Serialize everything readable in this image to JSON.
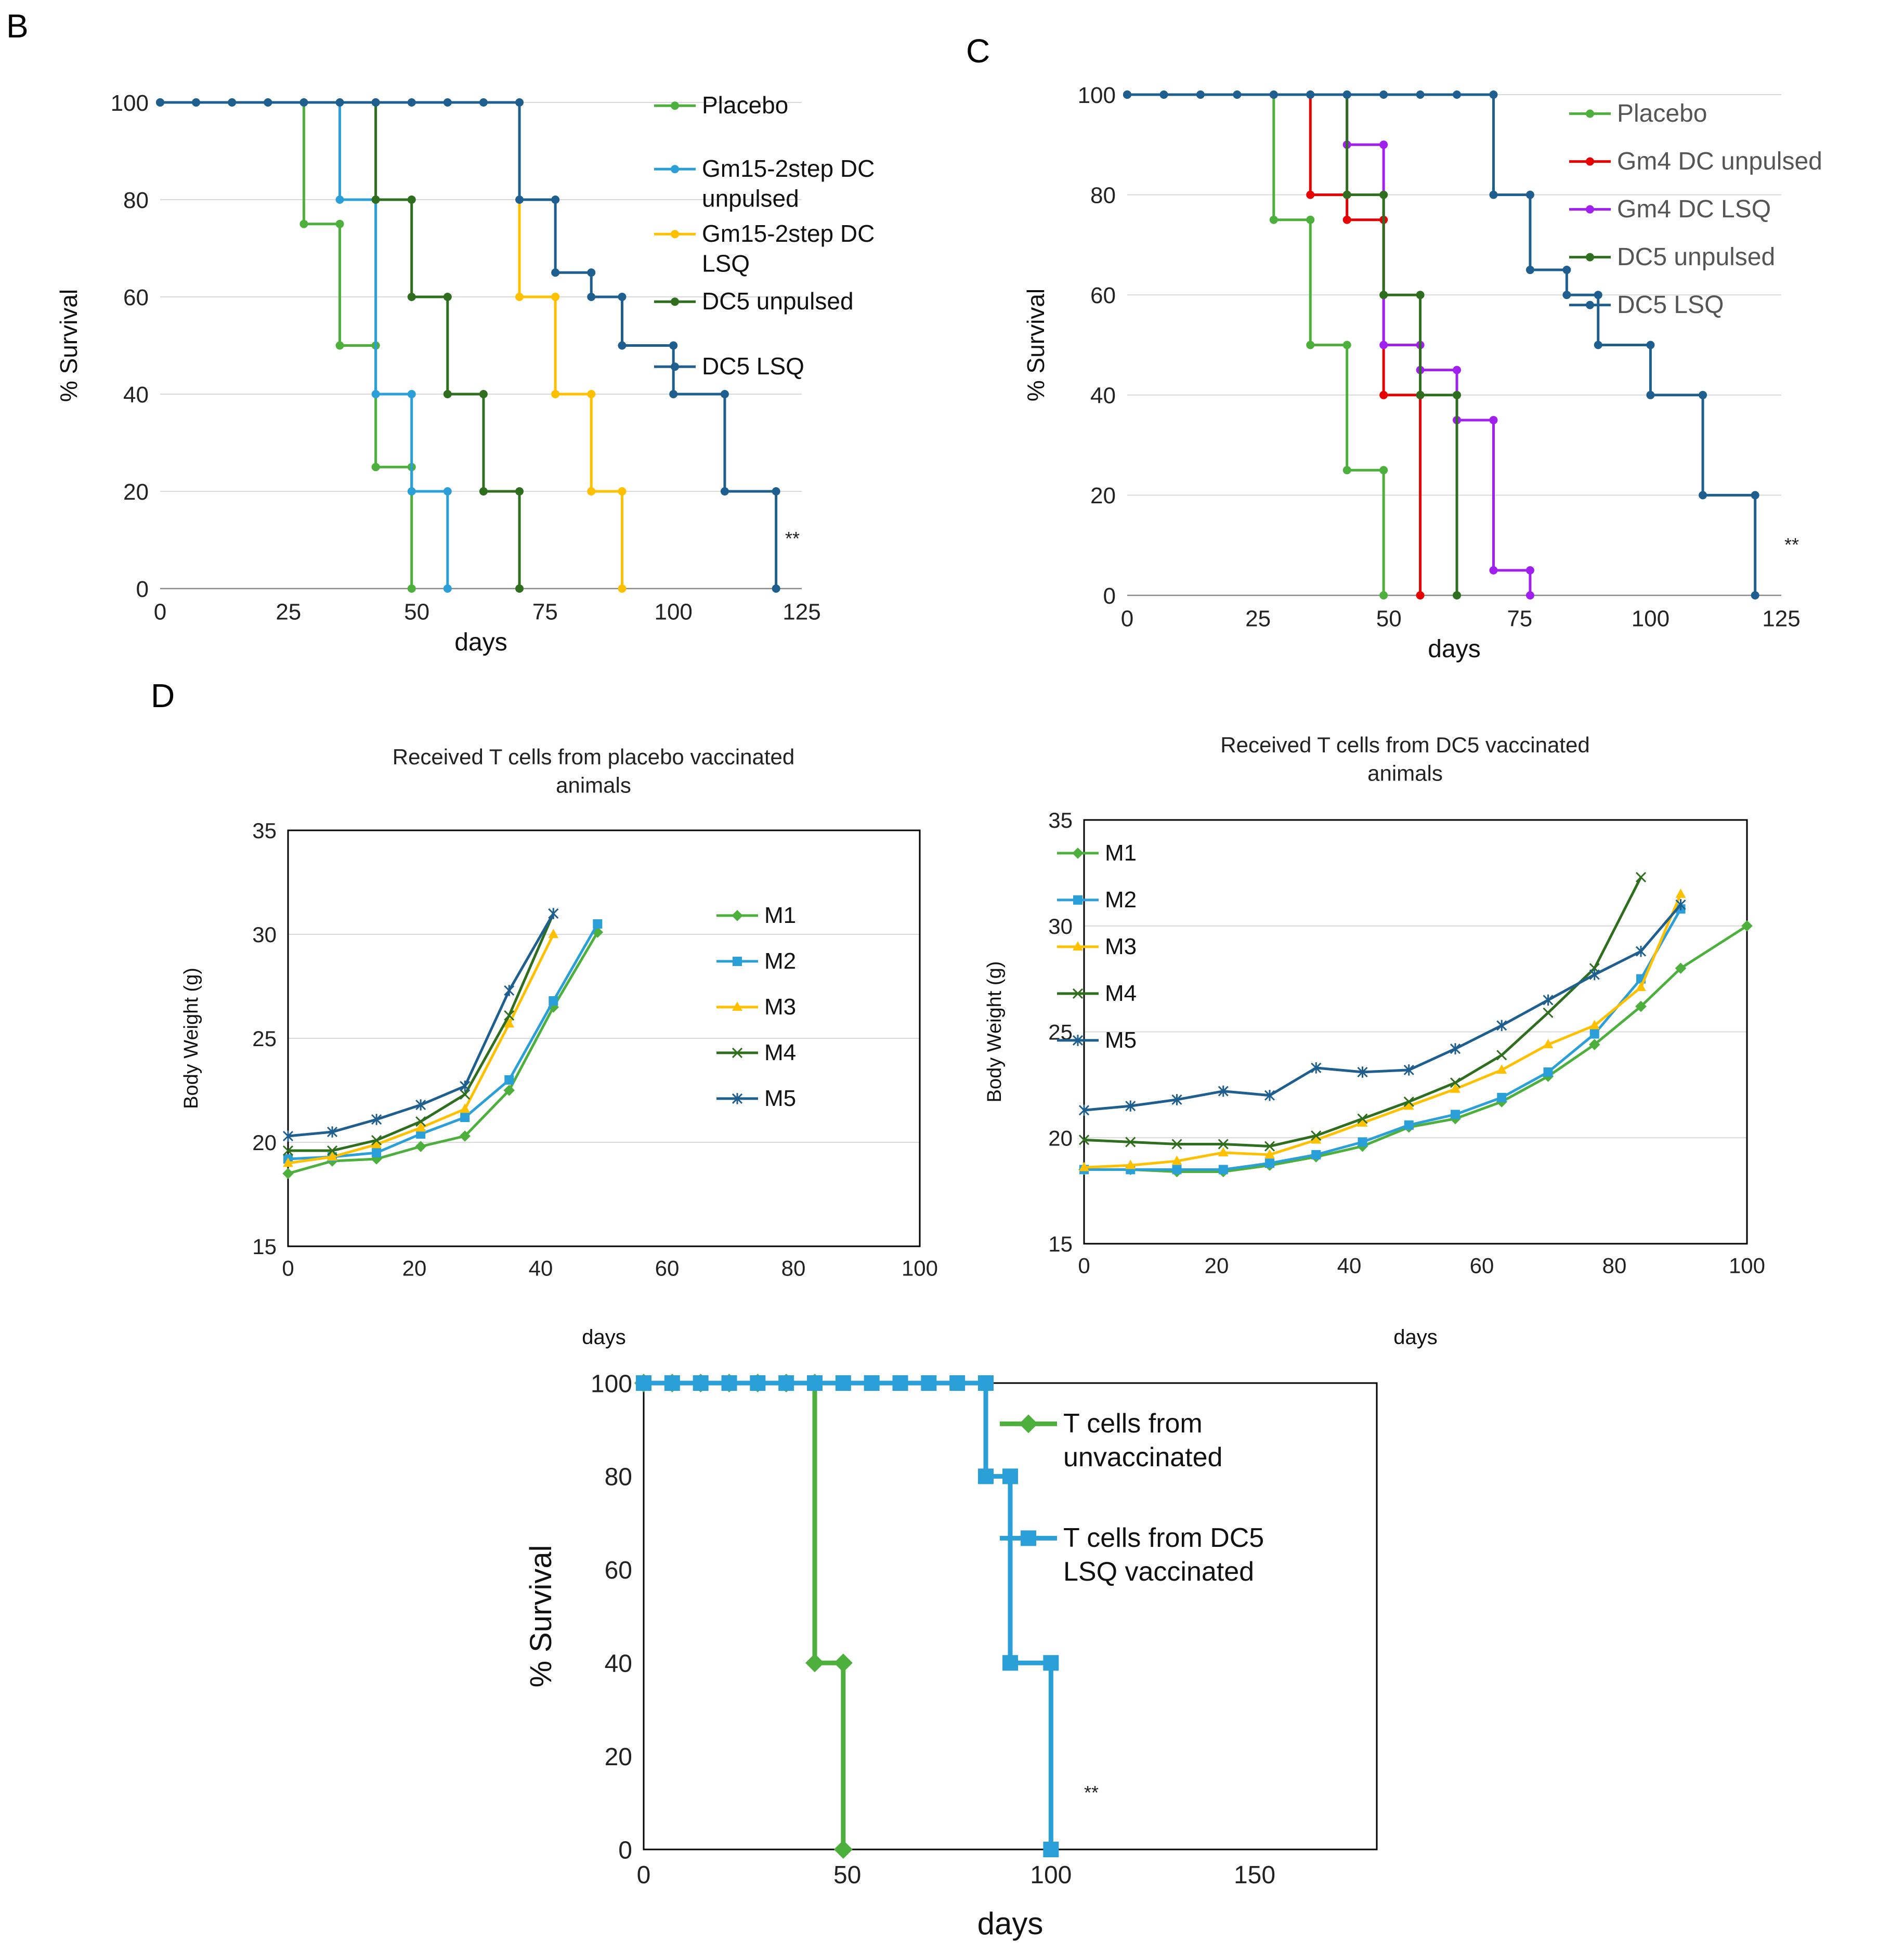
{
  "panels": {
    "B": {
      "letter": "B"
    },
    "C": {
      "letter": "C"
    },
    "D": {
      "letter": "D"
    }
  },
  "chart_data": [
    {
      "id": "chartB",
      "type": "line",
      "step": true,
      "title": "",
      "xlabel": "days",
      "ylabel": "% Survival",
      "xlim": [
        0,
        125
      ],
      "ylim": [
        0,
        100
      ],
      "xticks": [
        0,
        25,
        50,
        75,
        100,
        125
      ],
      "yticks": [
        0,
        20,
        40,
        60,
        80,
        100
      ],
      "grid": "horizontal",
      "annotation": "**",
      "series": [
        {
          "name": "Placebo",
          "color": "#4daf3c",
          "marker": "circle",
          "x": [
            0,
            7,
            14,
            21,
            28,
            28,
            35,
            35,
            42,
            42,
            49,
            49
          ],
          "y": [
            100,
            100,
            100,
            100,
            100,
            75,
            75,
            50,
            50,
            25,
            25,
            0
          ]
        },
        {
          "name": "Gm15-2step DC unpulsed",
          "color": "#2b9fd8",
          "marker": "circle",
          "x": [
            0,
            35,
            35,
            42,
            42,
            49,
            49,
            56,
            56
          ],
          "y": [
            100,
            100,
            80,
            80,
            40,
            40,
            20,
            20,
            0
          ]
        },
        {
          "name": "Gm15-2step DC LSQ",
          "color": "#ffc000",
          "marker": "circle",
          "x": [
            0,
            70,
            70,
            77,
            77,
            84,
            84,
            90,
            90
          ],
          "y": [
            100,
            100,
            60,
            60,
            40,
            40,
            20,
            20,
            0
          ]
        },
        {
          "name": "DC5 unpulsed",
          "color": "#2e6e1e",
          "marker": "circle",
          "x": [
            0,
            42,
            42,
            49,
            49,
            56,
            56,
            63,
            63,
            70,
            70
          ],
          "y": [
            100,
            100,
            80,
            80,
            60,
            60,
            40,
            40,
            20,
            20,
            0
          ]
        },
        {
          "name": "DC5 LSQ",
          "color": "#1f5f8f",
          "marker": "circle",
          "x": [
            0,
            7,
            14,
            21,
            28,
            35,
            42,
            49,
            56,
            63,
            70,
            70,
            77,
            77,
            84,
            84,
            90,
            90,
            100,
            100,
            110,
            110,
            120,
            120
          ],
          "y": [
            100,
            100,
            100,
            100,
            100,
            100,
            100,
            100,
            100,
            100,
            100,
            80,
            80,
            65,
            65,
            60,
            60,
            50,
            50,
            40,
            40,
            20,
            20,
            0
          ]
        }
      ]
    },
    {
      "id": "chartC",
      "type": "line",
      "step": true,
      "title": "",
      "xlabel": "days",
      "ylabel": "% Survival",
      "xlim": [
        0,
        125
      ],
      "ylim": [
        0,
        100
      ],
      "xticks": [
        0,
        25,
        50,
        75,
        100,
        125
      ],
      "yticks": [
        0,
        20,
        40,
        60,
        80,
        100
      ],
      "grid": "horizontal",
      "annotation": "**",
      "series": [
        {
          "name": "Placebo",
          "color": "#4daf3c",
          "marker": "circle",
          "x": [
            0,
            7,
            14,
            21,
            28,
            28,
            35,
            35,
            42,
            42,
            49,
            49
          ],
          "y": [
            100,
            100,
            100,
            100,
            100,
            75,
            75,
            50,
            50,
            25,
            25,
            0
          ]
        },
        {
          "name": "Gm4 DC unpulsed",
          "color": "#e60000",
          "marker": "circle",
          "x": [
            0,
            35,
            35,
            42,
            42,
            49,
            49,
            56,
            56
          ],
          "y": [
            100,
            100,
            80,
            80,
            75,
            75,
            40,
            40,
            0
          ]
        },
        {
          "name": "Gm4 DC LSQ",
          "color": "#a020f0",
          "marker": "circle",
          "x": [
            0,
            42,
            42,
            49,
            49,
            56,
            56,
            63,
            63,
            70,
            70,
            77,
            77
          ],
          "y": [
            100,
            100,
            90,
            90,
            50,
            50,
            45,
            45,
            35,
            35,
            5,
            5,
            0
          ]
        },
        {
          "name": "DC5 unpulsed",
          "color": "#2e6e1e",
          "marker": "circle",
          "x": [
            0,
            42,
            42,
            49,
            49,
            56,
            56,
            63,
            63
          ],
          "y": [
            100,
            100,
            80,
            80,
            60,
            60,
            40,
            40,
            0
          ]
        },
        {
          "name": "DC5 LSQ",
          "color": "#1f5f8f",
          "marker": "circle",
          "x": [
            0,
            7,
            14,
            21,
            28,
            35,
            42,
            49,
            56,
            63,
            70,
            70,
            77,
            77,
            84,
            84,
            90,
            90,
            100,
            100,
            110,
            110,
            120,
            120
          ],
          "y": [
            100,
            100,
            100,
            100,
            100,
            100,
            100,
            100,
            100,
            100,
            100,
            80,
            80,
            65,
            65,
            60,
            60,
            50,
            50,
            40,
            40,
            20,
            20,
            0
          ]
        }
      ]
    },
    {
      "id": "chartD1",
      "type": "line",
      "step": false,
      "title": "Received T cells from placebo vaccinated animals",
      "title_lines": [
        "Received T cells from placebo vaccinated",
        "animals"
      ],
      "xlabel": "days",
      "ylabel": "Body Weight (g)",
      "xlim": [
        0,
        100
      ],
      "ylim": [
        15,
        35
      ],
      "xticks": [
        0,
        20,
        40,
        60,
        80,
        100
      ],
      "yticks": [
        15,
        20,
        25,
        30,
        35
      ],
      "grid": "horizontal",
      "series": [
        {
          "name": "M1",
          "color": "#4daf3c",
          "marker": "diamond",
          "x": [
            0,
            7,
            14,
            21,
            28,
            35,
            42,
            49
          ],
          "y": [
            18.5,
            19.1,
            19.2,
            19.8,
            20.3,
            22.5,
            26.5,
            30.1
          ]
        },
        {
          "name": "M2",
          "color": "#2b9fd8",
          "marker": "square",
          "x": [
            0,
            7,
            14,
            21,
            28,
            35,
            42,
            49
          ],
          "y": [
            19.2,
            19.3,
            19.5,
            20.4,
            21.2,
            23.0,
            26.8,
            30.5
          ]
        },
        {
          "name": "M3",
          "color": "#ffc000",
          "marker": "triangle",
          "x": [
            0,
            7,
            14,
            21,
            28,
            35,
            42
          ],
          "y": [
            19.0,
            19.3,
            19.9,
            20.7,
            21.6,
            25.7,
            30.0
          ]
        },
        {
          "name": "M4",
          "color": "#2e6e1e",
          "marker": "x",
          "x": [
            0,
            7,
            14,
            21,
            28,
            35,
            42
          ],
          "y": [
            19.6,
            19.6,
            20.1,
            21.0,
            22.3,
            26.1,
            31.0
          ]
        },
        {
          "name": "M5",
          "color": "#1f5f8f",
          "marker": "star",
          "x": [
            0,
            7,
            14,
            21,
            28,
            35,
            42
          ],
          "y": [
            20.3,
            20.5,
            21.1,
            21.8,
            22.7,
            27.3,
            31.0
          ]
        }
      ]
    },
    {
      "id": "chartD2",
      "type": "line",
      "step": false,
      "title": "Received T cells from DC5 vaccinated animals",
      "title_lines": [
        "Received T cells from DC5 vaccinated",
        "animals"
      ],
      "xlabel": "days",
      "ylabel": "Body Weight (g)",
      "xlim": [
        0,
        100
      ],
      "ylim": [
        15,
        35
      ],
      "xticks": [
        0,
        20,
        40,
        60,
        80,
        100
      ],
      "yticks": [
        15,
        20,
        25,
        30,
        35
      ],
      "grid": "horizontal",
      "series": [
        {
          "name": "M1",
          "color": "#4daf3c",
          "marker": "diamond",
          "x": [
            0,
            7,
            14,
            21,
            28,
            35,
            42,
            49,
            56,
            63,
            70,
            77,
            84,
            90,
            100
          ],
          "y": [
            18.5,
            18.5,
            18.4,
            18.4,
            18.7,
            19.1,
            19.6,
            20.5,
            20.9,
            21.7,
            22.9,
            24.4,
            26.2,
            28.0,
            30.0
          ]
        },
        {
          "name": "M2",
          "color": "#2b9fd8",
          "marker": "square",
          "x": [
            0,
            7,
            14,
            21,
            28,
            35,
            42,
            49,
            56,
            63,
            70,
            77,
            84,
            90
          ],
          "y": [
            18.5,
            18.5,
            18.5,
            18.5,
            18.8,
            19.2,
            19.8,
            20.6,
            21.1,
            21.9,
            23.1,
            24.9,
            27.5,
            30.8
          ]
        },
        {
          "name": "M3",
          "color": "#ffc000",
          "marker": "triangle",
          "x": [
            0,
            7,
            14,
            21,
            28,
            35,
            42,
            49,
            56,
            63,
            70,
            77,
            84,
            90
          ],
          "y": [
            18.6,
            18.7,
            18.9,
            19.3,
            19.2,
            19.9,
            20.7,
            21.5,
            22.3,
            23.2,
            24.4,
            25.3,
            27.1,
            31.5
          ]
        },
        {
          "name": "M4",
          "color": "#2e6e1e",
          "marker": "x",
          "x": [
            0,
            7,
            14,
            21,
            28,
            35,
            42,
            49,
            56,
            63,
            70,
            77,
            84
          ],
          "y": [
            19.9,
            19.8,
            19.7,
            19.7,
            19.6,
            20.1,
            20.9,
            21.7,
            22.6,
            23.9,
            25.9,
            28.0,
            32.3
          ]
        },
        {
          "name": "M5",
          "color": "#1f5f8f",
          "marker": "star",
          "x": [
            0,
            7,
            14,
            21,
            28,
            35,
            42,
            49,
            56,
            63,
            70,
            77,
            84,
            90
          ],
          "y": [
            21.3,
            21.5,
            21.8,
            22.2,
            22.0,
            23.3,
            23.1,
            23.2,
            24.2,
            25.3,
            26.5,
            27.7,
            28.8,
            31.0
          ]
        }
      ]
    },
    {
      "id": "chartD3",
      "type": "line",
      "step": true,
      "title": "",
      "xlabel": "days",
      "ylabel": "% Survival",
      "xlim": [
        0,
        180
      ],
      "ylim": [
        0,
        100
      ],
      "xticks": [
        0,
        50,
        100,
        150
      ],
      "yticks": [
        0,
        20,
        40,
        60,
        80,
        100
      ],
      "grid": "none",
      "annotation": "**",
      "series": [
        {
          "name": "T cells from unvaccinated",
          "legend_lines": [
            "T cells from",
            "unvaccinated"
          ],
          "color": "#4daf3c",
          "marker": "diamond",
          "x": [
            0,
            7,
            14,
            21,
            28,
            35,
            42,
            42,
            49,
            49
          ],
          "y": [
            100,
            100,
            100,
            100,
            100,
            100,
            100,
            40,
            40,
            0
          ]
        },
        {
          "name": "T cells from DC5 LSQ vaccinated",
          "legend_lines": [
            "T cells from DC5",
            "LSQ vaccinated"
          ],
          "color": "#2b9fd8",
          "marker": "square",
          "x": [
            0,
            7,
            14,
            21,
            28,
            35,
            42,
            49,
            56,
            63,
            70,
            77,
            84,
            84,
            90,
            90,
            100,
            100
          ],
          "y": [
            100,
            100,
            100,
            100,
            100,
            100,
            100,
            100,
            100,
            100,
            100,
            100,
            100,
            80,
            80,
            40,
            40,
            0
          ]
        }
      ]
    }
  ]
}
